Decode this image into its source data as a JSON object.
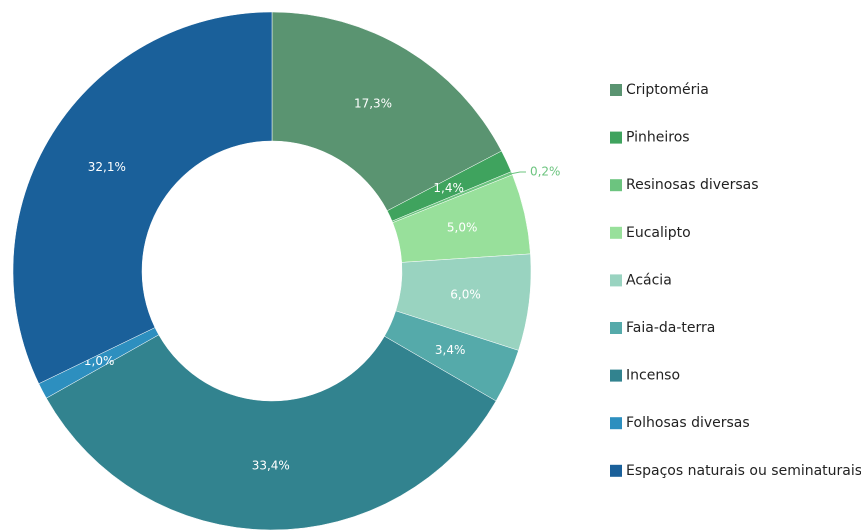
{
  "chart_data": {
    "type": "pie",
    "categories": [
      "Criptoméria",
      "Pinheiros",
      "Resinosas diversas",
      "Eucalipto",
      "Acácia",
      "Faia-da-terra",
      "Incenso",
      "Folhosas diversas",
      "Espaços naturais ou seminaturais"
    ],
    "values": [
      17.3,
      1.4,
      0.2,
      5.0,
      6.0,
      3.4,
      33.4,
      1.0,
      32.1
    ],
    "value_labels": [
      "17,3%",
      "1,4%",
      "0,2%",
      "5,0%",
      "6,0%",
      "3,4%",
      "33,4%",
      "1,0%",
      "32,1%"
    ],
    "colors": [
      "#5a9471",
      "#3fa35e",
      "#6cc47f",
      "#98e09b",
      "#99d3c0",
      "#55aaaa",
      "#32838f",
      "#2d8fbf",
      "#1a609a"
    ],
    "legend": "right"
  }
}
